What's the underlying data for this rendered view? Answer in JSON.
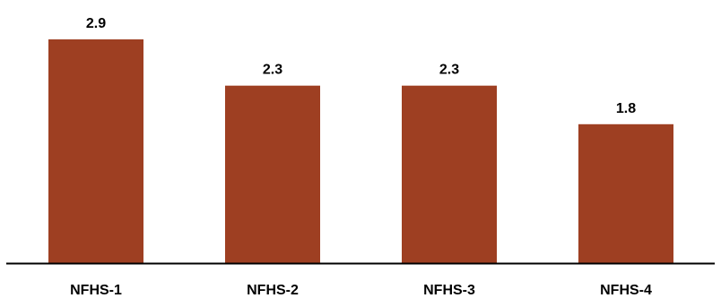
{
  "chart_data": {
    "type": "bar",
    "categories": [
      "NFHS-1",
      "NFHS-2",
      "NFHS-3",
      "NFHS-4"
    ],
    "values": [
      2.9,
      2.3,
      2.3,
      1.8
    ],
    "data_labels": [
      "2.9",
      "2.3",
      "2.3",
      "1.8"
    ],
    "title": "",
    "xlabel": "",
    "ylabel": "",
    "ylim": [
      0,
      3.2
    ],
    "grid": false,
    "legend": "none",
    "bar_color": "#9e3f22",
    "axis_color": "#000000"
  }
}
